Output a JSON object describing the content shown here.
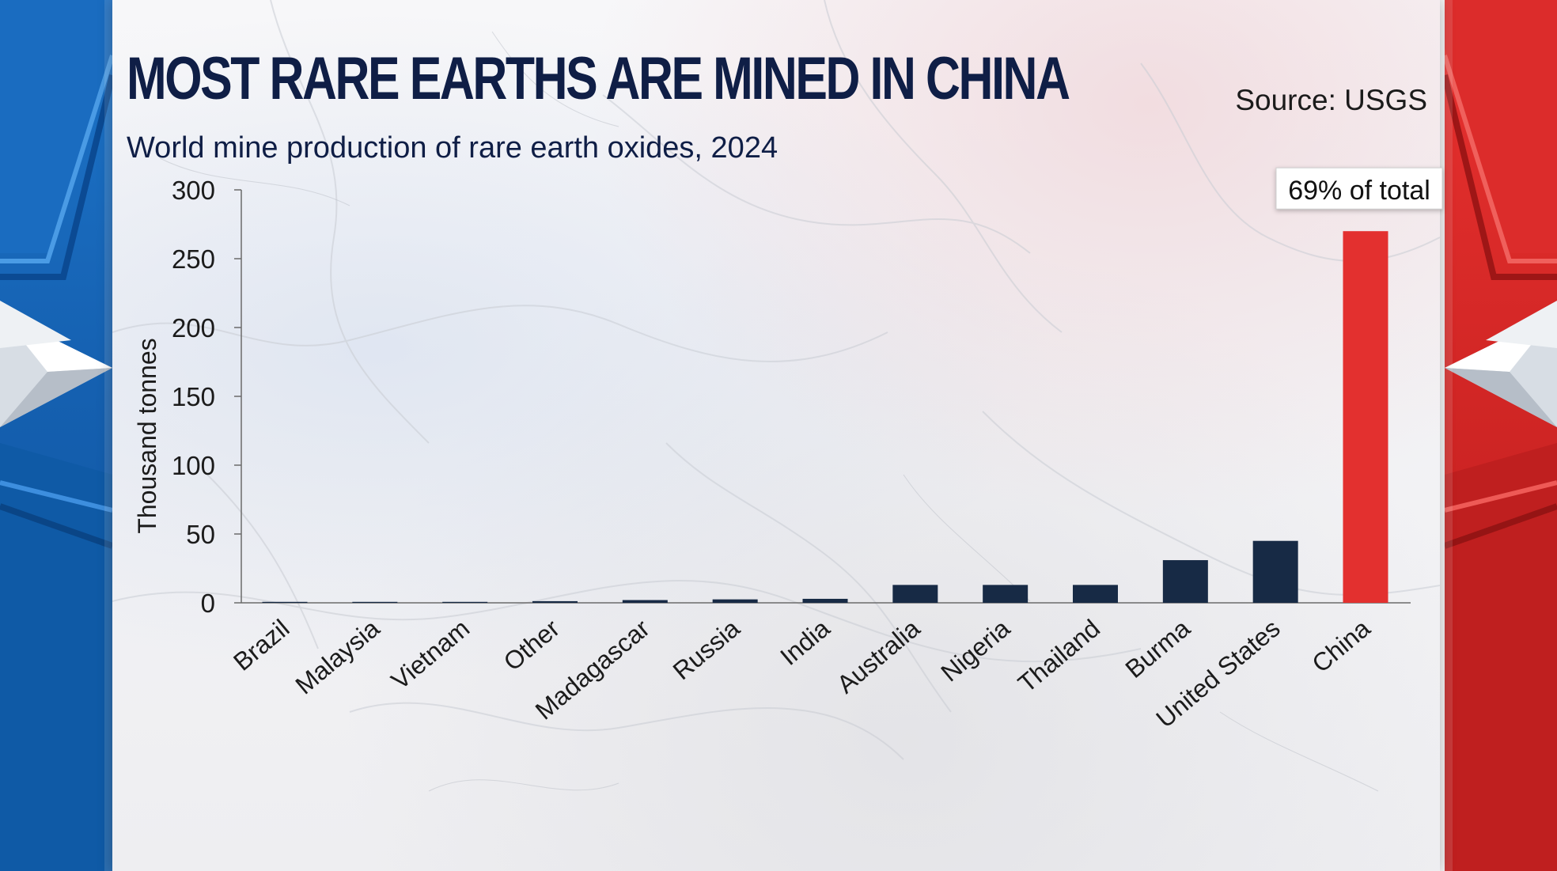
{
  "header": {
    "title": "MOST RARE EARTHS ARE MINED IN CHINA",
    "subtitle": "World mine production of rare earth oxides, 2024",
    "source": "Source: USGS"
  },
  "colors": {
    "bar": "#172a45",
    "highlight": "#e3302f",
    "title": "#0f1e46",
    "axis": "#6b6b6b",
    "left_panel": "#1560b0",
    "right_panel": "#cf2524"
  },
  "chart_data": {
    "type": "bar",
    "title": "MOST RARE EARTHS ARE MINED IN CHINA",
    "subtitle": "World mine production of rare earth oxides, 2024",
    "xlabel": "",
    "ylabel": "Thousand tonnes",
    "ylim": [
      0,
      300
    ],
    "yticks": [
      0,
      50,
      100,
      150,
      200,
      250,
      300
    ],
    "categories": [
      "Brazil",
      "Malaysia",
      "Vietnam",
      "Other",
      "Madagascar",
      "Russia",
      "India",
      "Australia",
      "Nigeria",
      "Thailand",
      "Burma",
      "United States",
      "China"
    ],
    "values": [
      0.02,
      0.13,
      0.3,
      1.2,
      2,
      2.5,
      2.9,
      13,
      13,
      13,
      31,
      45,
      270
    ],
    "highlight_category": "China",
    "annotation": "69% of total",
    "grid": false,
    "legend": "none"
  }
}
